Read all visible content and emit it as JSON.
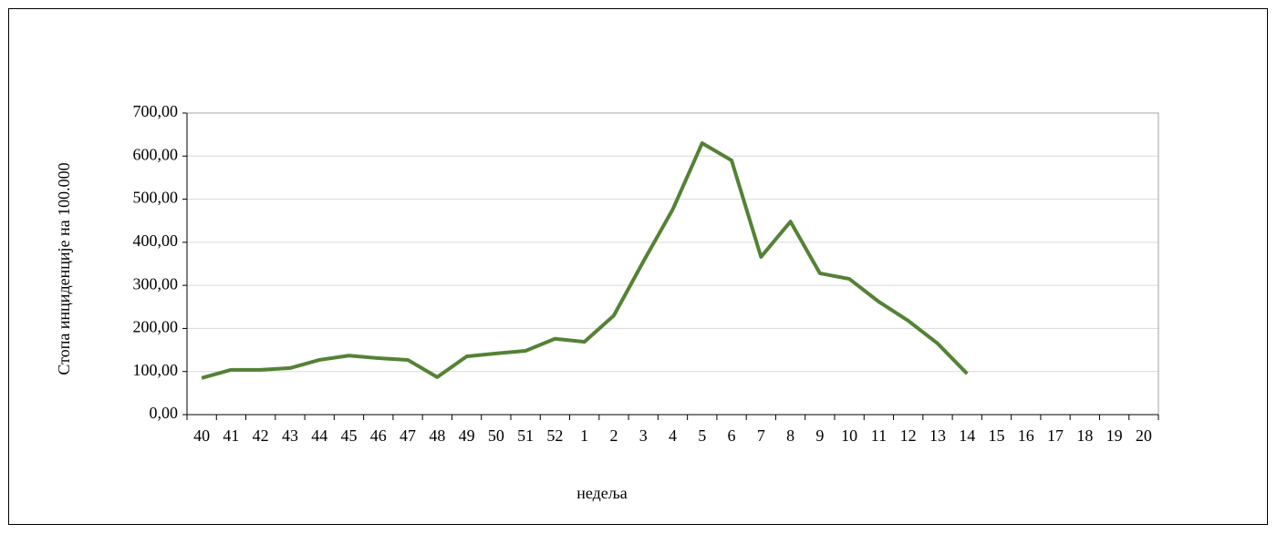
{
  "chart_data": {
    "type": "line",
    "y_label": "Стопа инциденције  на 100.000",
    "x_label": "недеља",
    "categories": [
      "40",
      "41",
      "42",
      "43",
      "44",
      "45",
      "46",
      "47",
      "48",
      "49",
      "50",
      "51",
      "52",
      "1",
      "2",
      "3",
      "4",
      "5",
      "6",
      "7",
      "8",
      "9",
      "10",
      "11",
      "12",
      "13",
      "14",
      "15",
      "16",
      "17",
      "18",
      "19",
      "20"
    ],
    "values": [
      85,
      104,
      104,
      108,
      127,
      137,
      131,
      127,
      87,
      135,
      142,
      148,
      176,
      169,
      230,
      355,
      476,
      630,
      590,
      366,
      448,
      328,
      315,
      262,
      218,
      165,
      95,
      null,
      null,
      null,
      null,
      null,
      null
    ],
    "color": "#548235",
    "ylim": [
      0,
      700
    ],
    "yticks": [
      {
        "value": 0,
        "label": "0,00"
      },
      {
        "value": 100,
        "label": "100,00"
      },
      {
        "value": 200,
        "label": "200,00"
      },
      {
        "value": 300,
        "label": "300,00"
      },
      {
        "value": 400,
        "label": "400,00"
      },
      {
        "value": 500,
        "label": "500,00"
      },
      {
        "value": 600,
        "label": "600,00"
      },
      {
        "value": 700,
        "label": "700,00"
      }
    ],
    "grid": true
  }
}
